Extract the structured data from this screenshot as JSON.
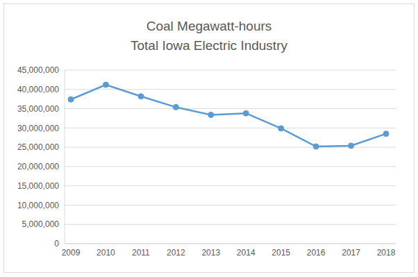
{
  "chart_data": {
    "type": "line",
    "title": "Coal Megawatt-hours",
    "subtitle": "Total Iowa Electric Industry",
    "categories": [
      "2009",
      "2010",
      "2011",
      "2012",
      "2013",
      "2014",
      "2015",
      "2016",
      "2017",
      "2018"
    ],
    "values": [
      37400000,
      41200000,
      38200000,
      35400000,
      33400000,
      33800000,
      29900000,
      25200000,
      25400000,
      28500000
    ],
    "color": "#5b9bd5",
    "marker": "circle",
    "ylim": [
      0,
      45000000
    ],
    "yticks": [
      {
        "value": 0,
        "label": "0"
      },
      {
        "value": 5000000,
        "label": "5,000,000"
      },
      {
        "value": 10000000,
        "label": "10,000,000"
      },
      {
        "value": 15000000,
        "label": "15,000,000"
      },
      {
        "value": 20000000,
        "label": "20,000,000"
      },
      {
        "value": 25000000,
        "label": "25,000,000"
      },
      {
        "value": 30000000,
        "label": "30,000,000"
      },
      {
        "value": 35000000,
        "label": "35,000,000"
      },
      {
        "value": 40000000,
        "label": "40,000,000"
      },
      {
        "value": 45000000,
        "label": "45,000,000"
      }
    ],
    "grid": true
  }
}
